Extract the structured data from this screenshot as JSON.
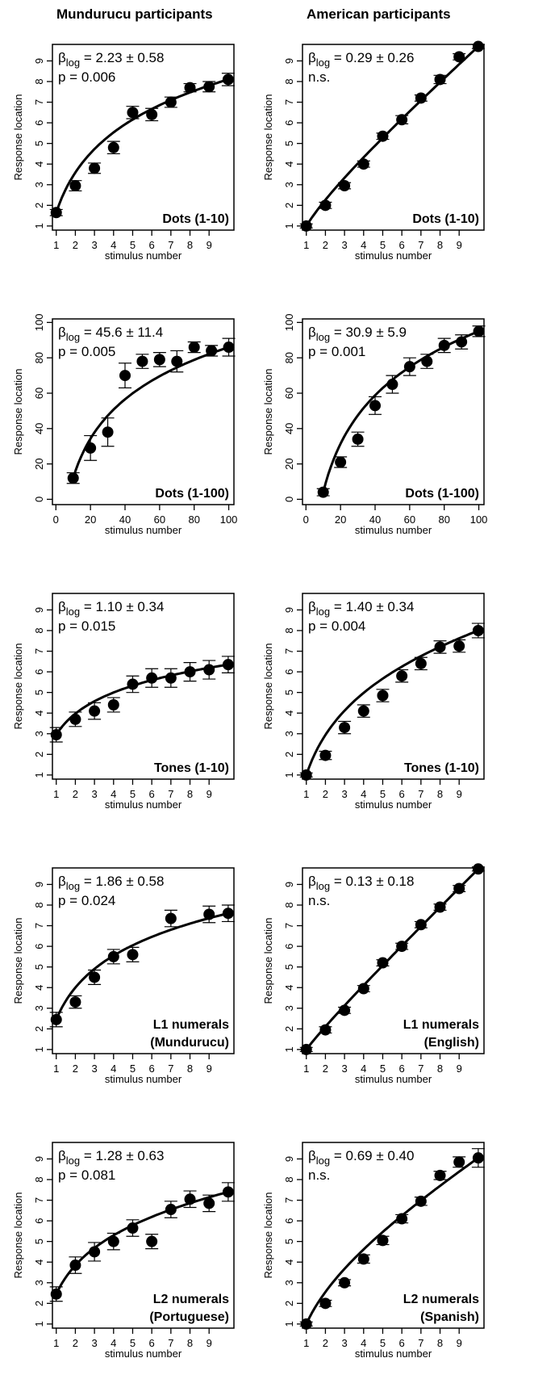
{
  "columns": {
    "left": "Mundurucu participants",
    "right": "American participants"
  },
  "chart_data": [
    {
      "type": "scatter",
      "group": "Mundurucu",
      "condition": [
        "Dots (1-10)"
      ],
      "beta_label": "β",
      "beta_sub": "log",
      "beta_value": "= 2.23 ± 0.58",
      "p_text": "p = 0.006",
      "xlabel": "stimulus number",
      "ylabel": "Response location",
      "xlim": [
        0.8,
        10.3
      ],
      "ylim": [
        0.8,
        9.8
      ],
      "xticks": [
        1,
        2,
        3,
        4,
        5,
        6,
        7,
        8,
        9
      ],
      "yticks": [
        1,
        2,
        3,
        4,
        5,
        6,
        7,
        8,
        9
      ],
      "x": [
        1,
        2,
        3,
        4,
        5,
        6,
        7,
        8,
        9,
        10
      ],
      "y": [
        1.65,
        2.95,
        3.8,
        4.8,
        6.5,
        6.4,
        7.0,
        7.7,
        7.75,
        8.1
      ],
      "err": [
        0.15,
        0.25,
        0.25,
        0.3,
        0.3,
        0.3,
        0.25,
        0.2,
        0.25,
        0.3
      ],
      "fit": {
        "a": 1.25,
        "b": 2.23,
        "kind": "log"
      }
    },
    {
      "type": "scatter",
      "group": "American",
      "condition": [
        "Dots (1-10)"
      ],
      "beta_label": "β",
      "beta_sub": "log",
      "beta_value": "= 0.29 ± 0.26",
      "p_text": "n.s.",
      "xlabel": "stimulus number",
      "ylabel": "Response location",
      "xlim": [
        0.8,
        10.3
      ],
      "ylim": [
        0.8,
        9.8
      ],
      "xticks": [
        1,
        2,
        3,
        4,
        5,
        6,
        7,
        8,
        9
      ],
      "yticks": [
        1,
        2,
        3,
        4,
        5,
        6,
        7,
        8,
        9
      ],
      "x": [
        1,
        2,
        3,
        4,
        5,
        6,
        7,
        8,
        9,
        10
      ],
      "y": [
        1.0,
        2.0,
        2.95,
        4.0,
        5.35,
        6.15,
        7.2,
        8.1,
        9.2,
        9.7
      ],
      "err": [
        0.1,
        0.15,
        0.15,
        0.15,
        0.15,
        0.2,
        0.15,
        0.2,
        0.15,
        0.1
      ],
      "fit": {
        "a": 0.85,
        "b": 0.29,
        "kind": "loglin",
        "slope": 0.78
      }
    },
    {
      "type": "scatter",
      "group": "Mundurucu",
      "condition": [
        "Dots (1-100)"
      ],
      "beta_label": "β",
      "beta_sub": "log",
      "beta_value": "= 45.6 ± 11.4",
      "p_text": "p = 0.005",
      "xlabel": "stimulus number",
      "ylabel": "Response location",
      "xlim": [
        -2,
        103
      ],
      "ylim": [
        -3,
        102
      ],
      "xticks": [
        0,
        20,
        40,
        60,
        80,
        100
      ],
      "yticks": [
        0,
        20,
        40,
        60,
        80,
        100
      ],
      "x": [
        10,
        20,
        30,
        40,
        50,
        60,
        70,
        80,
        90,
        100
      ],
      "y": [
        12,
        29,
        38,
        70,
        78,
        79,
        78,
        86,
        84,
        86
      ],
      "err": [
        3,
        7,
        8,
        7,
        4,
        4,
        6,
        3,
        3,
        5
      ],
      "fit": {
        "a": -93,
        "b": 39.4,
        "kind": "ln"
      }
    },
    {
      "type": "scatter",
      "group": "American",
      "condition": [
        "Dots (1-100)"
      ],
      "beta_label": "β",
      "beta_sub": "log",
      "beta_value": "= 30.9 ± 5.9",
      "p_text": "p = 0.001",
      "xlabel": "stimulus number",
      "ylabel": "Response location",
      "xlim": [
        -2,
        103
      ],
      "ylim": [
        -3,
        102
      ],
      "xticks": [
        0,
        20,
        40,
        60,
        80,
        100
      ],
      "yticks": [
        0,
        20,
        40,
        60,
        80,
        100
      ],
      "x": [
        10,
        20,
        30,
        40,
        50,
        60,
        70,
        80,
        90,
        100
      ],
      "y": [
        4,
        21,
        34,
        53,
        65,
        75,
        78,
        87,
        89,
        95
      ],
      "err": [
        2,
        3,
        4,
        5,
        5,
        5,
        4,
        4,
        4,
        3
      ],
      "fit": {
        "a": -72,
        "b": 36.0,
        "kind": "ln"
      }
    },
    {
      "type": "scatter",
      "group": "Mundurucu",
      "condition": [
        "Tones (1-10)"
      ],
      "beta_label": "β",
      "beta_sub": "log",
      "beta_value": "= 1.10 ± 0.34",
      "p_text": "p = 0.015",
      "xlabel": "stimulus number",
      "ylabel": "Response location",
      "xlim": [
        0.8,
        10.3
      ],
      "ylim": [
        0.8,
        9.8
      ],
      "xticks": [
        1,
        2,
        3,
        4,
        5,
        6,
        7,
        8,
        9
      ],
      "yticks": [
        1,
        2,
        3,
        4,
        5,
        6,
        7,
        8,
        9
      ],
      "x": [
        1,
        2,
        3,
        4,
        5,
        6,
        7,
        8,
        9,
        10
      ],
      "y": [
        2.95,
        3.7,
        4.1,
        4.4,
        5.4,
        5.7,
        5.7,
        6.0,
        6.1,
        6.35
      ],
      "err": [
        0.35,
        0.35,
        0.4,
        0.35,
        0.4,
        0.45,
        0.45,
        0.45,
        0.45,
        0.4
      ],
      "fit": {
        "a": 2.95,
        "b": 1.5,
        "kind": "log"
      }
    },
    {
      "type": "scatter",
      "group": "American",
      "condition": [
        "Tones (1-10)"
      ],
      "beta_label": "β",
      "beta_sub": "log",
      "beta_value": "= 1.40 ± 0.34",
      "p_text": "p = 0.004",
      "xlabel": "stimulus number",
      "ylabel": "Response location",
      "xlim": [
        0.8,
        10.3
      ],
      "ylim": [
        0.8,
        9.8
      ],
      "xticks": [
        1,
        2,
        3,
        4,
        5,
        6,
        7,
        8,
        9
      ],
      "yticks": [
        1,
        2,
        3,
        4,
        5,
        6,
        7,
        8,
        9
      ],
      "x": [
        1,
        2,
        3,
        4,
        5,
        6,
        7,
        8,
        9,
        10
      ],
      "y": [
        1.0,
        1.95,
        3.3,
        4.1,
        4.85,
        5.8,
        6.4,
        7.2,
        7.25,
        8.0
      ],
      "err": [
        0.1,
        0.2,
        0.3,
        0.3,
        0.3,
        0.3,
        0.3,
        0.3,
        0.3,
        0.35
      ],
      "fit": {
        "a": 0.95,
        "b": 1.4,
        "kind": "loglin",
        "slope": 0.42
      }
    },
    {
      "type": "scatter",
      "group": "Mundurucu",
      "condition": [
        "L1 numerals",
        "(Mundurucu)"
      ],
      "beta_label": "β",
      "beta_sub": "log",
      "beta_value": "= 1.86 ± 0.58",
      "p_text": "p = 0.024",
      "xlabel": "stimulus number",
      "ylabel": "Response location",
      "xlim": [
        0.8,
        10.3
      ],
      "ylim": [
        0.8,
        9.8
      ],
      "xticks": [
        1,
        2,
        3,
        4,
        5,
        6,
        7,
        8,
        9
      ],
      "yticks": [
        1,
        2,
        3,
        4,
        5,
        6,
        7,
        8,
        9
      ],
      "x": [
        1,
        2,
        3,
        4,
        5,
        6,
        7,
        8,
        9,
        10
      ],
      "y": [
        2.45,
        3.3,
        4.5,
        5.5,
        5.6,
        null,
        7.35,
        null,
        7.55,
        7.6
      ],
      "err": [
        0.35,
        0.3,
        0.35,
        0.35,
        0.35,
        null,
        0.4,
        null,
        0.4,
        0.4
      ],
      "fit": {
        "a": 2.45,
        "b": 2.4,
        "kind": "log"
      }
    },
    {
      "type": "scatter",
      "group": "American",
      "condition": [
        "L1 numerals",
        "(English)"
      ],
      "beta_label": "β",
      "beta_sub": "log",
      "beta_value": "= 0.13 ± 0.18",
      "p_text": "n.s.",
      "xlabel": "stimulus number",
      "ylabel": "Response location",
      "xlim": [
        0.8,
        10.3
      ],
      "ylim": [
        0.8,
        9.8
      ],
      "xticks": [
        1,
        2,
        3,
        4,
        5,
        6,
        7,
        8,
        9
      ],
      "yticks": [
        1,
        2,
        3,
        4,
        5,
        6,
        7,
        8,
        9
      ],
      "x": [
        1,
        2,
        3,
        4,
        5,
        6,
        7,
        8,
        9,
        10
      ],
      "y": [
        1.0,
        1.95,
        2.9,
        3.95,
        5.2,
        6.0,
        7.05,
        7.9,
        8.8,
        9.75
      ],
      "err": [
        0.1,
        0.15,
        0.15,
        0.15,
        0.15,
        0.15,
        0.15,
        0.15,
        0.15,
        0.1
      ],
      "fit": {
        "a": 0.95,
        "b": 0.13,
        "kind": "loglin",
        "slope": 0.88
      }
    },
    {
      "type": "scatter",
      "group": "Mundurucu",
      "condition": [
        "L2 numerals",
        "(Portuguese)"
      ],
      "beta_label": "β",
      "beta_sub": "log",
      "beta_value": "= 1.28 ± 0.63",
      "p_text": "p = 0.081",
      "xlabel": "stimulus number",
      "ylabel": "Response location",
      "xlim": [
        0.8,
        10.3
      ],
      "ylim": [
        0.8,
        9.8
      ],
      "xticks": [
        1,
        2,
        3,
        4,
        5,
        6,
        7,
        8,
        9
      ],
      "yticks": [
        1,
        2,
        3,
        4,
        5,
        6,
        7,
        8,
        9
      ],
      "x": [
        1,
        2,
        3,
        4,
        5,
        6,
        7,
        8,
        9,
        10
      ],
      "y": [
        2.45,
        3.85,
        4.5,
        5.0,
        5.65,
        5.0,
        6.55,
        7.05,
        6.85,
        7.4
      ],
      "err": [
        0.35,
        0.4,
        0.45,
        0.4,
        0.4,
        0.35,
        0.4,
        0.4,
        0.4,
        0.45
      ],
      "fit": {
        "a": 2.5,
        "b": 1.85,
        "kind": "loglin",
        "slope": 0.12
      }
    },
    {
      "type": "scatter",
      "group": "American",
      "condition": [
        "L2 numerals",
        "(Spanish)"
      ],
      "beta_label": "β",
      "beta_sub": "log",
      "beta_value": "= 0.69 ± 0.40",
      "p_text": "n.s.",
      "xlabel": "stimulus number",
      "ylabel": "Response location",
      "xlim": [
        0.8,
        10.3
      ],
      "ylim": [
        0.8,
        9.8
      ],
      "xticks": [
        1,
        2,
        3,
        4,
        5,
        6,
        7,
        8,
        9
      ],
      "yticks": [
        1,
        2,
        3,
        4,
        5,
        6,
        7,
        8,
        9
      ],
      "x": [
        1,
        2,
        3,
        4,
        5,
        6,
        7,
        8,
        9,
        10
      ],
      "y": [
        1.0,
        2.0,
        3.0,
        4.15,
        5.05,
        6.1,
        6.95,
        8.2,
        8.85,
        9.05
      ],
      "err": [
        0.1,
        0.15,
        0.15,
        0.2,
        0.2,
        0.2,
        0.2,
        0.2,
        0.25,
        0.45
      ],
      "fit": {
        "a": 0.9,
        "b": 0.69,
        "kind": "loglin",
        "slope": 0.72
      }
    }
  ]
}
